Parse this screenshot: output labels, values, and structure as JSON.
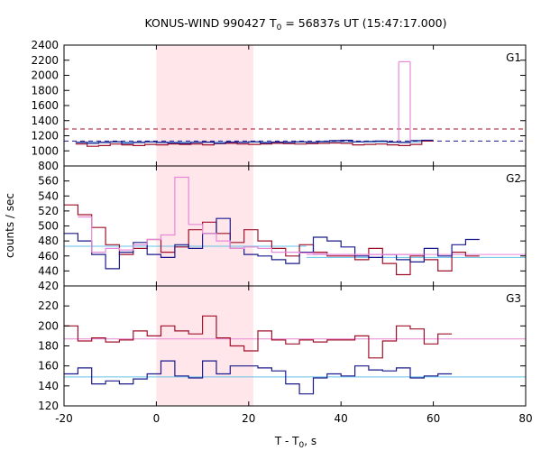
{
  "chart_data": {
    "type": "line",
    "title": "KONUS-WIND 990427 T",
    "title_sub": "0",
    "title_tail": " = 56837s UT (15:47:17.000)",
    "xlabel": "T - T",
    "xlabel_sub": "0",
    "xlabel_tail": ", s",
    "ylabel": "counts / sec",
    "xlim": [
      -20,
      80
    ],
    "x_ticks": [
      -20,
      0,
      20,
      40,
      60,
      80
    ],
    "shaded_interval": [
      0,
      21
    ],
    "colors": {
      "dark_red": "#a0102a",
      "dark_blue": "#1a1a8c",
      "pink": "#e888d8",
      "light_blue": "#66c2e8",
      "shade": "#ffe6ea",
      "dashed_red": "#a0102a",
      "dashed_blue": "#1a1a8c"
    },
    "panels": [
      {
        "name": "G1",
        "ylim": [
          800,
          2400
        ],
        "y_ticks": [
          800,
          1000,
          1200,
          1400,
          1600,
          1800,
          2000,
          2200,
          2400
        ],
        "bins": [
          -20,
          -17.5,
          -15,
          -12.5,
          -10,
          -7.5,
          -5,
          -2.5,
          0,
          2.5,
          5,
          7.5,
          10,
          12.5,
          15,
          17.5,
          20,
          22.5,
          25,
          27.5,
          30,
          32.5,
          35,
          37.5,
          40,
          42.5,
          45,
          47.5,
          50,
          52.5,
          55,
          57.5
        ],
        "series": [
          {
            "color_key": "dark_red",
            "x0": -17.5,
            "values": [
              1090,
              1060,
              1070,
              1090,
              1080,
              1070,
              1085,
              1080,
              1090,
              1085,
              1090,
              1080,
              1095,
              1100,
              1090,
              1085,
              1090,
              1100,
              1095,
              1090,
              1095,
              1100,
              1105,
              1100,
              1080,
              1085,
              1090,
              1080,
              1070,
              1085,
              1130
            ]
          },
          {
            "color_key": "dark_blue",
            "x0": -17.5,
            "values": [
              1110,
              1100,
              1110,
              1120,
              1100,
              1110,
              1120,
              1110,
              1105,
              1100,
              1110,
              1115,
              1100,
              1115,
              1110,
              1120,
              1105,
              1115,
              1110,
              1120,
              1110,
              1125,
              1135,
              1140,
              1120,
              1125,
              1130,
              1115,
              1110,
              1135,
              1140
            ]
          },
          {
            "color_key": "pink",
            "x0": 52.5,
            "values": [
              2180
            ]
          }
        ],
        "dashed": [
          {
            "color_key": "dashed_red",
            "y": 1290
          },
          {
            "color_key": "dashed_blue",
            "y": 1130
          }
        ],
        "flat": [
          {
            "color_key": "pink",
            "y": 1120,
            "x_from": -17.5,
            "x_to": 52.5
          },
          {
            "color_key": "light_blue",
            "y": 1115,
            "x_from": -17.5,
            "x_to": 57.5
          }
        ]
      },
      {
        "name": "G2",
        "ylim": [
          420,
          580
        ],
        "y_ticks": [
          420,
          440,
          460,
          480,
          500,
          520,
          540,
          560
        ],
        "series": [
          {
            "color_key": "dark_red",
            "x0": -20,
            "step": 3,
            "values": [
              528,
              515,
              498,
              475,
              462,
              470,
              482,
              465,
              472,
              495,
              505,
              490,
              478,
              495,
              480,
              470,
              460,
              475,
              465,
              460,
              460,
              455,
              470,
              450,
              435,
              460,
              455,
              440,
              465,
              460
            ]
          },
          {
            "color_key": "dark_blue",
            "x0": -20,
            "step": 3,
            "values": [
              490,
              480,
              462,
              443,
              465,
              478,
              462,
              458,
              475,
              470,
              490,
              510,
              470,
              462,
              460,
              455,
              450,
              465,
              485,
              480,
              472,
              460,
              458,
              462,
              455,
              452,
              470,
              460,
              475,
              482
            ]
          },
          {
            "color_key": "pink",
            "x0": -17,
            "step": 3,
            "values": [
              512,
              465,
              470,
              468,
              475,
              482,
              488,
              565,
              502,
              490,
              480,
              470,
              472,
              470,
              465,
              465,
              464,
              463,
              462,
              462,
              462,
              462,
              462,
              462,
              462
            ]
          }
        ],
        "flat": [
          {
            "color_key": "light_blue",
            "y": 473,
            "x_from": -20,
            "x_to": 32.5
          },
          {
            "color_key": "pink",
            "y": 462,
            "x_from": 32.5,
            "x_to": 80
          },
          {
            "color_key": "light_blue",
            "y": 458,
            "x_from": 32.5,
            "x_to": 80
          }
        ]
      },
      {
        "name": "G3",
        "ylim": [
          120,
          240
        ],
        "y_ticks": [
          120,
          140,
          160,
          180,
          200,
          220
        ],
        "series": [
          {
            "color_key": "dark_red",
            "x0": -20,
            "step": 3,
            "values": [
              200,
              185,
              188,
              184,
              186,
              195,
              190,
              200,
              195,
              192,
              210,
              188,
              180,
              175,
              195,
              186,
              182,
              186,
              184,
              186,
              186,
              190,
              168,
              185,
              200,
              197,
              182,
              192
            ]
          },
          {
            "color_key": "dark_blue",
            "x0": -20,
            "step": 3,
            "values": [
              152,
              158,
              142,
              145,
              142,
              147,
              152,
              165,
              150,
              148,
              165,
              152,
              160,
              160,
              158,
              155,
              142,
              132,
              148,
              152,
              150,
              160,
              156,
              155,
              158,
              148,
              150,
              152
            ]
          }
        ],
        "flat": [
          {
            "color_key": "pink",
            "y": 187,
            "x_from": -20,
            "x_to": 80
          },
          {
            "color_key": "light_blue",
            "y": 149,
            "x_from": -20,
            "x_to": 80
          }
        ]
      }
    ]
  }
}
